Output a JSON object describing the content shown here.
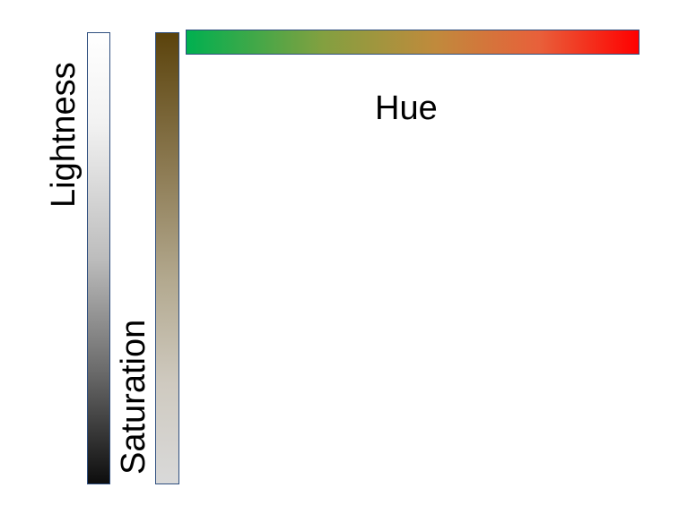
{
  "labels": {
    "lightness": "Lightness",
    "saturation": "Saturation",
    "hue": "Hue"
  },
  "gradients": {
    "lightness": [
      "#ffffff",
      "#0d0d0d"
    ],
    "saturation": [
      "#5b430c",
      "#d9d9d9"
    ],
    "hue": [
      "#00b050",
      "#ff0000"
    ]
  }
}
